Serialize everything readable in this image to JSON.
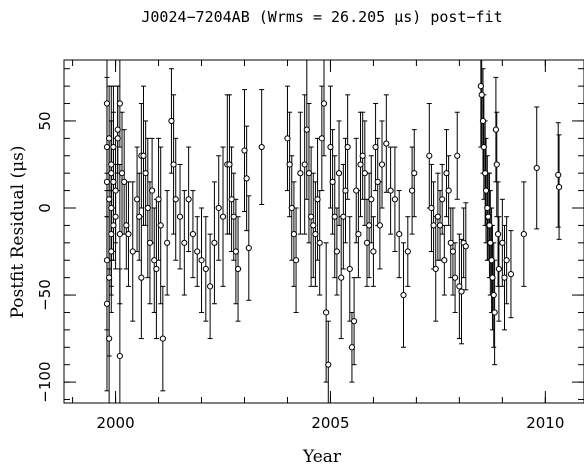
{
  "chart_data": {
    "type": "scatter",
    "title": "J0024−7204AB (Wrms = 26.205 μs) post−fit",
    "xlabel": "Year",
    "ylabel": "Postfit Residual (μs)",
    "xlim": [
      1998.8,
      2010.9
    ],
    "ylim": [
      -112,
      85
    ],
    "xticks_major": [
      2000,
      2005,
      2010
    ],
    "xtick_labels": [
      "2000",
      "2005",
      "2010"
    ],
    "yticks_major": [
      -100,
      -50,
      0,
      50
    ],
    "ytick_labels": [
      "−100",
      "−50",
      "0",
      "50"
    ],
    "x_minor_step": 1,
    "y_minor_step": 10,
    "grid": false,
    "legend": "none",
    "marker": "open-circle",
    "error_bars": true,
    "points": [
      [
        1999.8,
        60,
        40
      ],
      [
        1999.8,
        35,
        40
      ],
      [
        1999.8,
        15,
        45
      ],
      [
        1999.8,
        -30,
        40
      ],
      [
        1999.8,
        -55,
        50
      ],
      [
        1999.85,
        40,
        30
      ],
      [
        1999.85,
        5,
        35
      ],
      [
        1999.85,
        -40,
        45
      ],
      [
        1999.85,
        -75,
        40
      ],
      [
        1999.9,
        20,
        50
      ],
      [
        1999.9,
        0,
        50
      ],
      [
        1999.9,
        -15,
        30
      ],
      [
        1999.9,
        -25,
        35
      ],
      [
        1999.9,
        25,
        25
      ],
      [
        1999.95,
        15,
        40
      ],
      [
        1999.95,
        -10,
        20
      ],
      [
        1999.95,
        35,
        35
      ],
      [
        2000.0,
        10,
        30
      ],
      [
        2000.0,
        -5,
        30
      ],
      [
        2000.05,
        40,
        30
      ],
      [
        2000.05,
        45,
        25
      ],
      [
        2000.1,
        60,
        25
      ],
      [
        2000.1,
        -15,
        40
      ],
      [
        2000.1,
        -85,
        50
      ],
      [
        2000.15,
        20,
        35
      ],
      [
        2000.2,
        15,
        30
      ],
      [
        2000.25,
        -10,
        25
      ],
      [
        2000.3,
        -15,
        30
      ],
      [
        2000.4,
        -25,
        40
      ],
      [
        2000.5,
        5,
        30
      ],
      [
        2000.55,
        -5,
        25
      ],
      [
        2000.6,
        30,
        30
      ],
      [
        2000.6,
        -40,
        35
      ],
      [
        2000.65,
        30,
        40
      ],
      [
        2000.7,
        20,
        30
      ],
      [
        2000.75,
        0,
        40
      ],
      [
        2000.8,
        -20,
        35
      ],
      [
        2000.85,
        10,
        30
      ],
      [
        2000.9,
        -30,
        30
      ],
      [
        2000.95,
        -35,
        40
      ],
      [
        2001.0,
        5,
        35
      ],
      [
        2001.05,
        -10,
        45
      ],
      [
        2001.1,
        -75,
        30
      ],
      [
        2001.2,
        -20,
        30
      ],
      [
        2001.3,
        50,
        30
      ],
      [
        2001.35,
        25,
        40
      ],
      [
        2001.4,
        5,
        35
      ],
      [
        2001.5,
        -5,
        30
      ],
      [
        2001.6,
        -20,
        30
      ],
      [
        2001.7,
        5,
        30
      ],
      [
        2001.8,
        -15,
        25
      ],
      [
        2001.9,
        -25,
        20
      ],
      [
        2002.0,
        -30,
        30
      ],
      [
        2002.1,
        -35,
        30
      ],
      [
        2002.2,
        -45,
        30
      ],
      [
        2002.3,
        -20,
        35
      ],
      [
        2002.4,
        0,
        30
      ],
      [
        2002.5,
        -5,
        40
      ],
      [
        2002.6,
        25,
        40
      ],
      [
        2002.65,
        25,
        40
      ],
      [
        2002.7,
        5,
        30
      ],
      [
        2002.75,
        -5,
        25
      ],
      [
        2002.8,
        -25,
        30
      ],
      [
        2002.85,
        -35,
        30
      ],
      [
        2003.0,
        33,
        35
      ],
      [
        2003.05,
        17,
        30
      ],
      [
        2003.1,
        -23,
        30
      ],
      [
        2003.4,
        35,
        33
      ],
      [
        2004.0,
        40,
        30
      ],
      [
        2004.05,
        25,
        30
      ],
      [
        2004.1,
        0,
        30
      ],
      [
        2004.15,
        -15,
        30
      ],
      [
        2004.2,
        -30,
        30
      ],
      [
        2004.3,
        20,
        35
      ],
      [
        2004.4,
        25,
        40
      ],
      [
        2004.45,
        45,
        40
      ],
      [
        2004.5,
        20,
        40
      ],
      [
        2004.55,
        -5,
        40
      ],
      [
        2004.6,
        -10,
        30
      ],
      [
        2004.65,
        -15,
        30
      ],
      [
        2004.7,
        5,
        35
      ],
      [
        2004.75,
        -20,
        30
      ],
      [
        2004.8,
        40,
        30
      ],
      [
        2004.85,
        60,
        30
      ],
      [
        2004.9,
        -60,
        40
      ],
      [
        2004.95,
        -90,
        25
      ],
      [
        2005.0,
        35,
        35
      ],
      [
        2005.05,
        15,
        30
      ],
      [
        2005.1,
        -5,
        35
      ],
      [
        2005.15,
        -25,
        25
      ],
      [
        2005.2,
        20,
        30
      ],
      [
        2005.25,
        -40,
        35
      ],
      [
        2005.3,
        -5,
        30
      ],
      [
        2005.35,
        10,
        30
      ],
      [
        2005.4,
        35,
        30
      ],
      [
        2005.45,
        -35,
        30
      ],
      [
        2005.5,
        -80,
        20
      ],
      [
        2005.55,
        -65,
        25
      ],
      [
        2005.6,
        10,
        30
      ],
      [
        2005.65,
        -15,
        25
      ],
      [
        2005.7,
        25,
        30
      ],
      [
        2005.75,
        30,
        25
      ],
      [
        2005.8,
        20,
        30
      ],
      [
        2005.85,
        -20,
        25
      ],
      [
        2005.9,
        -10,
        30
      ],
      [
        2005.95,
        5,
        25
      ],
      [
        2006.0,
        -25,
        20
      ],
      [
        2006.05,
        35,
        25
      ],
      [
        2006.1,
        15,
        25
      ],
      [
        2006.15,
        -10,
        25
      ],
      [
        2006.2,
        25,
        25
      ],
      [
        2006.3,
        37,
        28
      ],
      [
        2006.4,
        10,
        25
      ],
      [
        2006.5,
        5,
        30
      ],
      [
        2006.6,
        -15,
        25
      ],
      [
        2006.7,
        -50,
        30
      ],
      [
        2006.8,
        -25,
        20
      ],
      [
        2006.9,
        10,
        25
      ],
      [
        2006.95,
        20,
        25
      ],
      [
        2007.3,
        30,
        30
      ],
      [
        2007.35,
        0,
        25
      ],
      [
        2007.4,
        -10,
        25
      ],
      [
        2007.45,
        -35,
        30
      ],
      [
        2007.5,
        -5,
        25
      ],
      [
        2007.55,
        -10,
        20
      ],
      [
        2007.6,
        5,
        20
      ],
      [
        2007.65,
        -30,
        20
      ],
      [
        2007.7,
        20,
        25
      ],
      [
        2007.75,
        10,
        20
      ],
      [
        2007.8,
        -20,
        20
      ],
      [
        2007.85,
        -25,
        25
      ],
      [
        2007.9,
        -40,
        20
      ],
      [
        2007.95,
        30,
        25
      ],
      [
        2008.0,
        -45,
        30
      ],
      [
        2008.05,
        -48,
        30
      ],
      [
        2008.1,
        -20,
        20
      ],
      [
        2008.15,
        -22,
        25
      ],
      [
        2008.5,
        70,
        35
      ],
      [
        2008.52,
        65,
        30
      ],
      [
        2008.55,
        50,
        30
      ],
      [
        2008.57,
        35,
        30
      ],
      [
        2008.6,
        20,
        30
      ],
      [
        2008.62,
        10,
        30
      ],
      [
        2008.65,
        0,
        30
      ],
      [
        2008.67,
        -5,
        25
      ],
      [
        2008.7,
        -10,
        30
      ],
      [
        2008.72,
        -20,
        30
      ],
      [
        2008.75,
        -30,
        30
      ],
      [
        2008.77,
        -40,
        30
      ],
      [
        2008.8,
        -50,
        30
      ],
      [
        2008.82,
        -60,
        30
      ],
      [
        2008.85,
        45,
        30
      ],
      [
        2008.87,
        25,
        30
      ],
      [
        2008.9,
        -15,
        30
      ],
      [
        2008.92,
        -35,
        30
      ],
      [
        2009.0,
        -20,
        25
      ],
      [
        2009.05,
        -40,
        30
      ],
      [
        2009.1,
        -30,
        25
      ],
      [
        2009.2,
        -38,
        25
      ],
      [
        2009.5,
        -15,
        30
      ],
      [
        2009.8,
        23,
        35
      ],
      [
        2010.3,
        19,
        30
      ],
      [
        2010.32,
        12,
        30
      ]
    ]
  }
}
